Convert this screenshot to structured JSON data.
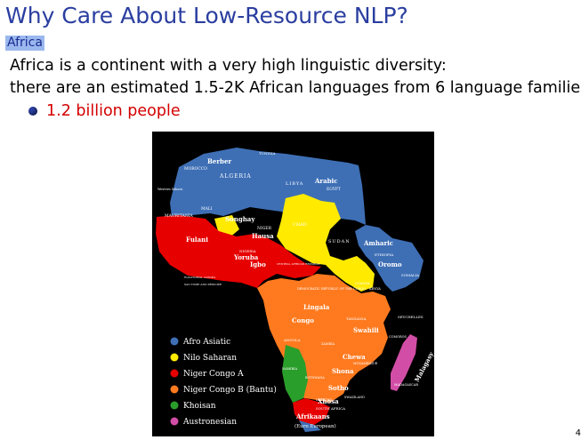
{
  "slide": {
    "title": "Why Care About Low-Resource NLP?",
    "section": "Africa",
    "line1": "Africa is a continent with a very high linguistic diversity:",
    "line2": "there are an estimated 1.5-2K African languages from 6 language families.",
    "bullet": "1.2 billion people",
    "page_number": "4"
  },
  "map": {
    "legend": [
      {
        "label": "Afro Asiatic",
        "color": "#3e6fb5"
      },
      {
        "label": "Nilo Saharan",
        "color": "#ffea00"
      },
      {
        "label": "Niger Congo A",
        "color": "#e60000"
      },
      {
        "label": "Niger Congo B (Bantu)",
        "color": "#ff7a1f"
      },
      {
        "label": "Khoisan",
        "color": "#2a9e2a"
      },
      {
        "label": "Austronesian",
        "color": "#d24ea6"
      }
    ],
    "countries": {
      "morocco": "MOROCCO",
      "algeria": "ALGERIA",
      "libya": "LIBYA",
      "egypt": "EGYPT",
      "mali": "MALI",
      "mauritania": "MAURITANIA",
      "niger": "NIGER",
      "chad": "CHAD",
      "sudan": "SUDAN",
      "ethiopia": "ETHIOPIA",
      "somalia": "SOMALIA",
      "nigeria": "NIGERIA",
      "car": "CENTRAL AFRICAN REPUBLIC",
      "drc": "DEMOCRATIC REPUBLIC OF THE CONGO",
      "angola": "ANGOLA",
      "tanzania": "TANZANIA",
      "zambia": "ZAMBIA",
      "mozambique": "MOZAMBIQUE",
      "namibia": "NAMIBIA",
      "botswana": "BOTSWANA",
      "south_africa": "SOUTH AFRICA",
      "madagascar": "MADAGASCAR",
      "seychelles": "SEYCHELLES",
      "kenya": "KENYA",
      "uganda": "UGANDA",
      "comoros": "COMOROS",
      "tunisia": "TUNISIA",
      "lesotho": "LESOTHO",
      "swaziland": "SWAZILAND",
      "western_sahara": "Western Sahara",
      "equatorial_guinea": "EQUATORIAL GUINEA",
      "sao_tome": "SAO TOME AND PRINCIPE"
    },
    "languages": {
      "berber": "Berber",
      "arabic": "Arabic",
      "songhay": "Songhay",
      "hausa": "Hausa",
      "fulani": "Fulani",
      "yoruba": "Yoruba",
      "igbo": "Igbo",
      "amharic": "Amharic",
      "oromo": "Oromo",
      "lingala": "Lingala",
      "congo": "Congo",
      "swahili": "Swahili",
      "chewa": "Chewa",
      "shona": "Shona",
      "sotho": "Sotho",
      "xhosa": "Xhosa",
      "afrikaans": "Afrikaans",
      "malagasy": "Malagasy",
      "euro": "(Euro European)"
    }
  }
}
